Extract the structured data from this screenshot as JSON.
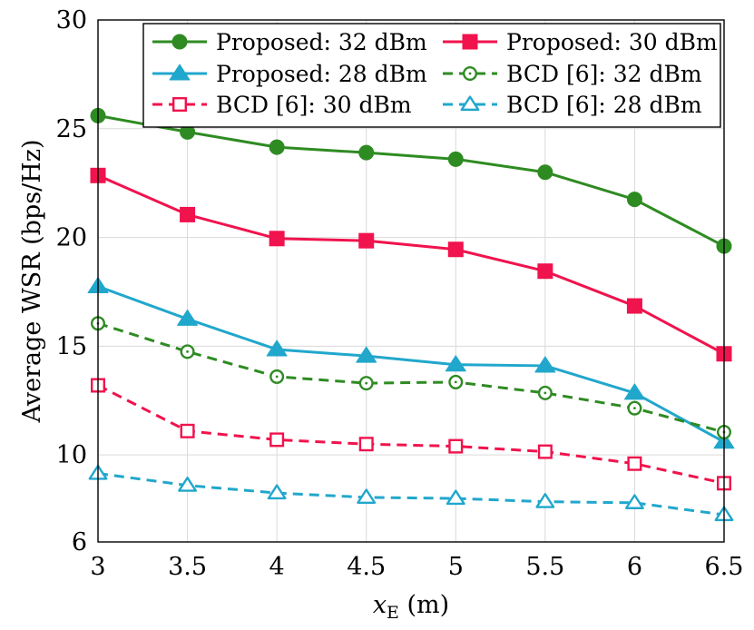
{
  "chart_data": {
    "type": "line",
    "title": "",
    "xlabel": {
      "main": "x",
      "sub": "E",
      "unit": " (m)"
    },
    "ylabel": "Average WSR (bps/Hz)",
    "x": [
      3,
      3.5,
      4,
      4.5,
      5,
      5.5,
      6,
      6.5
    ],
    "xlim": [
      3,
      6.5
    ],
    "ylim": [
      6,
      30
    ],
    "xticks": [
      "3",
      "3.5",
      "4",
      "4.5",
      "5",
      "5.5",
      "6",
      "6.5"
    ],
    "yticks": [
      "6",
      "10",
      "15",
      "20",
      "25",
      "30"
    ],
    "ytick_values": [
      6,
      10,
      15,
      20,
      25,
      30
    ],
    "grid": true,
    "legend_position": "top-right",
    "series": [
      {
        "name": "Proposed: 32 dBm",
        "color": "#2e8b22",
        "dash": "solid",
        "marker": "circle",
        "filled": true,
        "values": [
          25.6,
          24.85,
          24.15,
          23.9,
          23.6,
          23.0,
          21.75,
          19.6
        ]
      },
      {
        "name": "Proposed: 30 dBm",
        "color": "#f0134d",
        "dash": "solid",
        "marker": "square",
        "filled": true,
        "values": [
          22.85,
          21.05,
          19.95,
          19.85,
          19.45,
          18.45,
          16.85,
          14.65
        ]
      },
      {
        "name": "Proposed: 28 dBm",
        "color": "#21a7cc",
        "dash": "solid",
        "marker": "triangle",
        "filled": true,
        "values": [
          17.75,
          16.25,
          14.85,
          14.55,
          14.15,
          14.1,
          12.85,
          10.6
        ]
      },
      {
        "name": "BCD [6]: 32 dBm",
        "color": "#2e8b22",
        "dash": "dashed",
        "marker": "circle",
        "filled": false,
        "values": [
          16.05,
          14.75,
          13.6,
          13.3,
          13.35,
          12.85,
          12.15,
          11.05
        ]
      },
      {
        "name": "BCD [6]: 30 dBm",
        "color": "#f0134d",
        "dash": "dashed",
        "marker": "square",
        "filled": false,
        "values": [
          13.2,
          11.1,
          10.7,
          10.5,
          10.4,
          10.15,
          9.6,
          8.7
        ]
      },
      {
        "name": "BCD [6]: 28 dBm",
        "color": "#21a7cc",
        "dash": "dashed",
        "marker": "triangle",
        "filled": false,
        "values": [
          9.15,
          8.6,
          8.25,
          8.05,
          8.0,
          7.85,
          7.8,
          7.25
        ]
      }
    ]
  }
}
